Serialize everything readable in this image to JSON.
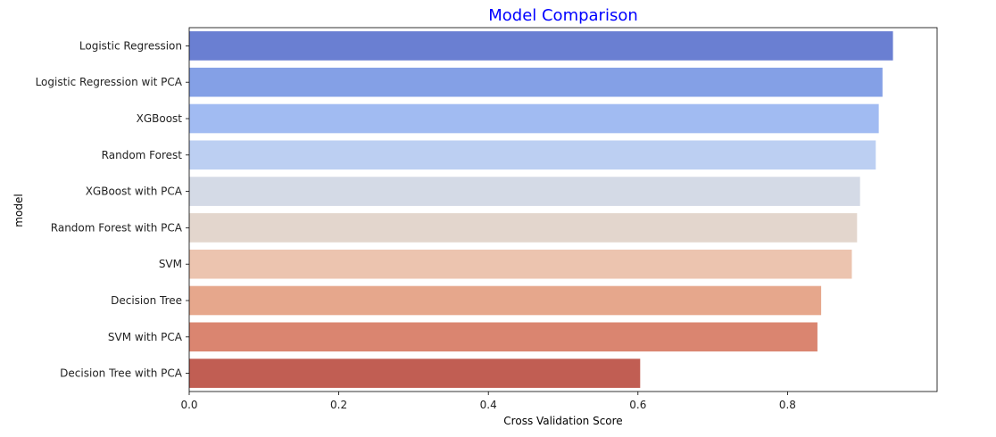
{
  "chart_data": {
    "type": "bar",
    "orientation": "horizontal",
    "title": "Model Comparison",
    "xlabel": "Cross Validation Score",
    "ylabel": "model",
    "xlim": [
      0,
      1.0
    ],
    "xticks": [
      0.0,
      0.2,
      0.4,
      0.6,
      0.8
    ],
    "xtick_labels": [
      "0.0",
      "0.2",
      "0.4",
      "0.6",
      "0.8"
    ],
    "grid": false,
    "legend": "none",
    "colors": {
      "title": "#0000ff"
    },
    "categories": [
      "Logistic Regression",
      "Logistic Regression wit PCA",
      "XGBoost",
      "Random Forest",
      "XGBoost with PCA",
      "Random Forest with PCA",
      "SVM",
      "Decision Tree",
      "SVM with PCA",
      "Decision Tree with PCA"
    ],
    "values": [
      0.941,
      0.927,
      0.922,
      0.918,
      0.897,
      0.893,
      0.886,
      0.845,
      0.84,
      0.603
    ],
    "bar_colors": [
      "#6a7fd2",
      "#84a0e6",
      "#a1bbf2",
      "#bccff2",
      "#d4dae6",
      "#e3d6cd",
      "#ecc4af",
      "#e6a78c",
      "#da8570",
      "#c15e53"
    ]
  }
}
